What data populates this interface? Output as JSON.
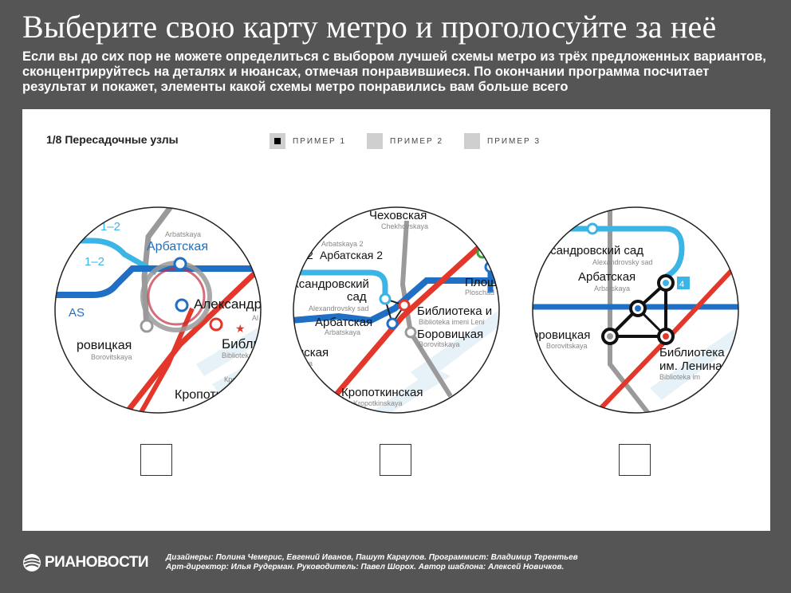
{
  "header": {
    "title": "Выберите свою карту метро и проголосуйте за неё",
    "subtitle": "Если вы до сих пор не можете определиться с выбором лучшей схемы метро из трёх предложенных вариантов, сконцентрируйтесь на деталях и нюансах, отмечая понравившиеся. По окончании программа посчитает результат и покажет, элементы какой схемы метро понравились вам больше всего"
  },
  "panel": {
    "step_label": "1/8 Пересадочные узлы",
    "legend": [
      {
        "label": "ПРИМЕР 1",
        "active": true
      },
      {
        "label": "ПРИМЕР 2",
        "active": false
      },
      {
        "label": "ПРИМЕР 3",
        "active": false
      }
    ]
  },
  "map1": {
    "l1": "1–2",
    "l2": "1–2",
    "l3": "AS",
    "l4": "ровицкая",
    "l5": "Borovitskaya",
    "l6": "Arbatskaya",
    "l7": "Арбатская",
    "l8": "Александров",
    "l9": "Библио",
    "l10": "Biblioteka i",
    "l11": "Кропоткин",
    "l12": "Кропот",
    "l13": "Al"
  },
  "map2": {
    "l1": "Чеховская",
    "l2": "Chekhovskaya",
    "l3": "Arbatskaya 2",
    "l4": "2",
    "l5": "Арбатская 2",
    "l6": "ксандровский",
    "l7": "сад",
    "l8": "Alexandrovsky sad",
    "l9": "Арбатская",
    "l10": "Arbatskaya",
    "l11": "Библиотека и",
    "l12": "Biblioteka imeni Leni",
    "l13": "Боровицкая",
    "l14": "Borovitskaya",
    "l15": "нская",
    "l16": "kaya",
    "l17": "Кропоткинская",
    "l18": "Kropotkinskaya",
    "l19": "Площ",
    "l20": "Ploschad"
  },
  "map3": {
    "l1": "ександровский сад",
    "l2": "Alexandrovsky sad",
    "l3": "Арбатская",
    "l4": "Arbatskaya",
    "l5": "оровицкая",
    "l6": "Borovitskaya",
    "l7": "Библиотека",
    "l8": "им. Ленина",
    "l9": "Biblioteka im",
    "l10": "4"
  },
  "footer": {
    "brand": "РИАНОВОСТИ",
    "credits_line1": "Дизайнеры: Полина Чемерис, Евгений Иванов, Пашут Караулов. Программист: Владимир Терентьев",
    "credits_line2": "Арт-директор: Илья Рудерман. Руководитель: Павел Шорох. Автор шаблона: Алексей Новичков."
  },
  "colors": {
    "background": "#555555",
    "panel": "#ffffff",
    "line_red": "#e2372a",
    "line_blue": "#1f6fc4",
    "line_lightblue": "#3bb4e6",
    "line_green": "#3aa535",
    "line_gray": "#9a9a9a"
  }
}
